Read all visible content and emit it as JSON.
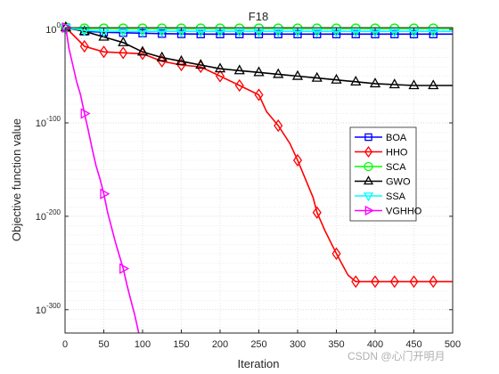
{
  "chart_data": {
    "type": "line",
    "title": "F18",
    "xlabel": "Iteration",
    "ylabel": "Objective function value",
    "xlim": [
      0,
      500
    ],
    "ylim_log10": [
      -325,
      2
    ],
    "y_scale": "log",
    "x_ticks": [
      {
        "value": 0,
        "label": "0"
      },
      {
        "value": 50,
        "label": "50"
      },
      {
        "value": 100,
        "label": "100"
      },
      {
        "value": 150,
        "label": "150"
      },
      {
        "value": 200,
        "label": "200"
      },
      {
        "value": 250,
        "label": "250"
      },
      {
        "value": 300,
        "label": "300"
      },
      {
        "value": 350,
        "label": "350"
      },
      {
        "value": 400,
        "label": "400"
      },
      {
        "value": 450,
        "label": "450"
      },
      {
        "value": 500,
        "label": "500"
      }
    ],
    "y_ticks": [
      {
        "log10": 0,
        "base": "10",
        "exp": "0"
      },
      {
        "log10": -100,
        "base": "10",
        "exp": "-100"
      },
      {
        "log10": -200,
        "base": "10",
        "exp": "-200"
      },
      {
        "log10": -300,
        "base": "10",
        "exp": "-300"
      }
    ],
    "grid": true,
    "legend": "right-center",
    "series": [
      {
        "name": "BOA",
        "color": "#0000ff",
        "marker": "square",
        "x": [
          1,
          25,
          50,
          75,
          100,
          125,
          150,
          175,
          200,
          225,
          250,
          275,
          300,
          325,
          350,
          375,
          400,
          425,
          450,
          475,
          500
        ],
        "y_log10": [
          2,
          -2,
          -3,
          -3.5,
          -4,
          -4.5,
          -4.8,
          -5,
          -5,
          -5,
          -5,
          -5,
          -5,
          -5,
          -5,
          -5,
          -5,
          -5,
          -5,
          -5,
          -5
        ]
      },
      {
        "name": "HHO",
        "color": "#ff0000",
        "marker": "diamond",
        "x": [
          1,
          25,
          50,
          75,
          100,
          125,
          150,
          175,
          200,
          225,
          250,
          260,
          275,
          290,
          300,
          310,
          320,
          325,
          335,
          350,
          365,
          375,
          400,
          425,
          450,
          475,
          500
        ],
        "y_log10": [
          2,
          -18,
          -24,
          -25,
          -26,
          -34,
          -38,
          -40,
          -50,
          -60,
          -70,
          -88,
          -103,
          -122,
          -140,
          -160,
          -180,
          -196,
          -215,
          -240,
          -263,
          -270,
          -270,
          -270,
          -270,
          -270,
          -270
        ]
      },
      {
        "name": "SCA",
        "color": "#00ff00",
        "marker": "circle",
        "x": [
          1,
          25,
          50,
          75,
          100,
          125,
          150,
          175,
          200,
          225,
          250,
          275,
          300,
          325,
          350,
          375,
          400,
          425,
          450,
          475,
          500
        ],
        "y_log10": [
          2,
          1,
          1,
          1,
          1,
          1,
          1,
          1,
          1,
          1,
          1,
          1,
          1,
          1,
          1,
          1,
          1,
          1,
          1,
          1,
          1
        ]
      },
      {
        "name": "GWO",
        "color": "#000000",
        "marker": "triangle",
        "x": [
          1,
          25,
          50,
          75,
          100,
          125,
          150,
          175,
          200,
          225,
          250,
          275,
          300,
          325,
          350,
          375,
          400,
          425,
          450,
          475,
          500
        ],
        "y_log10": [
          2,
          -2,
          -8,
          -14,
          -24,
          -30,
          -34,
          -38,
          -42,
          -44,
          -46,
          -48,
          -50,
          -52,
          -54,
          -56,
          -58,
          -59,
          -60,
          -60,
          -60
        ]
      },
      {
        "name": "SSA",
        "color": "#00ffff",
        "marker": "triangle-down",
        "x": [
          1,
          25,
          50,
          75,
          100,
          125,
          150,
          175,
          200,
          225,
          250,
          275,
          300,
          325,
          350,
          375,
          400,
          425,
          450,
          475,
          500
        ],
        "y_log10": [
          2,
          -1,
          -2,
          -2,
          -2,
          -2,
          -2,
          -2,
          -2,
          -2,
          -2,
          -2,
          -2,
          -2,
          -2,
          -2,
          -2,
          -2,
          -2,
          -2,
          -2
        ]
      },
      {
        "name": "VGHHO",
        "color": "#ff00ff",
        "marker": "triangle-right",
        "x": [
          1,
          5,
          10,
          15,
          20,
          25,
          30,
          35,
          40,
          45,
          50,
          55,
          60,
          65,
          70,
          75,
          80,
          85,
          90,
          95
        ],
        "y_log10": [
          2,
          -20,
          -38,
          -56,
          -70,
          -90,
          -108,
          -128,
          -146,
          -160,
          -176,
          -196,
          -212,
          -228,
          -242,
          -256,
          -274,
          -290,
          -306,
          -325
        ]
      }
    ]
  },
  "watermark": "CSDN @心门开明月"
}
